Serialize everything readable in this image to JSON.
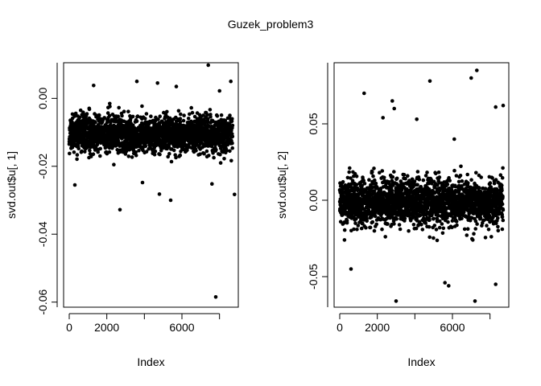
{
  "title": "Guzek_problem3",
  "chart_data": [
    {
      "type": "scatter",
      "title": "",
      "xlabel": "Index",
      "ylabel": "svd.out$u[, 1]",
      "xlim": [
        -300,
        9000
      ],
      "ylim": [
        -0.0615,
        0.0105
      ],
      "xticks": [
        0,
        2000,
        4000,
        6000,
        8000
      ],
      "xtick_labels": [
        "0",
        "2000",
        "",
        "6000",
        ""
      ],
      "yticks": [
        -0.06,
        -0.04,
        -0.02,
        0.0
      ],
      "ytick_labels": [
        "-0.06",
        "-0.04",
        "-0.02",
        "0.00"
      ],
      "n_points": 8700,
      "bulk": {
        "center": -0.0105,
        "spread": 0.0026
      },
      "outliers": [
        {
          "x": 7400,
          "y": 0.0098
        },
        {
          "x": 8600,
          "y": 0.005
        },
        {
          "x": 3600,
          "y": 0.005
        },
        {
          "x": 4700,
          "y": 0.0045
        },
        {
          "x": 1300,
          "y": 0.0038
        },
        {
          "x": 8000,
          "y": 0.0022
        },
        {
          "x": 5700,
          "y": 0.0035
        },
        {
          "x": 300,
          "y": -0.0255
        },
        {
          "x": 2700,
          "y": -0.0328
        },
        {
          "x": 4800,
          "y": -0.0282
        },
        {
          "x": 5400,
          "y": -0.03
        },
        {
          "x": 3900,
          "y": -0.0248
        },
        {
          "x": 7600,
          "y": -0.0252
        },
        {
          "x": 8800,
          "y": -0.0283
        },
        {
          "x": 7800,
          "y": -0.0585
        }
      ]
    },
    {
      "type": "scatter",
      "title": "",
      "xlabel": "Index",
      "ylabel": "svd.out$u[, 2]",
      "xlim": [
        -300,
        9000
      ],
      "ylim": [
        -0.07,
        0.09
      ],
      "xticks": [
        0,
        2000,
        4000,
        6000,
        8000
      ],
      "xtick_labels": [
        "0",
        "2000",
        "",
        "6000",
        ""
      ],
      "yticks": [
        -0.05,
        0.0,
        0.05
      ],
      "ytick_labels": [
        "-0.05",
        "0.00",
        "0.05"
      ],
      "n_points": 8700,
      "bulk": {
        "center": -0.001,
        "spread": 0.0075
      },
      "outliers": [
        {
          "x": 7300,
          "y": 0.085
        },
        {
          "x": 7000,
          "y": 0.08
        },
        {
          "x": 4800,
          "y": 0.078
        },
        {
          "x": 1300,
          "y": 0.07
        },
        {
          "x": 2800,
          "y": 0.065
        },
        {
          "x": 8700,
          "y": 0.062
        },
        {
          "x": 2900,
          "y": 0.06
        },
        {
          "x": 8300,
          "y": 0.061
        },
        {
          "x": 4100,
          "y": 0.053
        },
        {
          "x": 2300,
          "y": 0.054
        },
        {
          "x": 6100,
          "y": 0.04
        },
        {
          "x": 600,
          "y": -0.045
        },
        {
          "x": 3000,
          "y": -0.066
        },
        {
          "x": 7200,
          "y": -0.066
        },
        {
          "x": 8300,
          "y": -0.055
        },
        {
          "x": 5800,
          "y": -0.056
        },
        {
          "x": 5600,
          "y": -0.054
        }
      ]
    }
  ]
}
